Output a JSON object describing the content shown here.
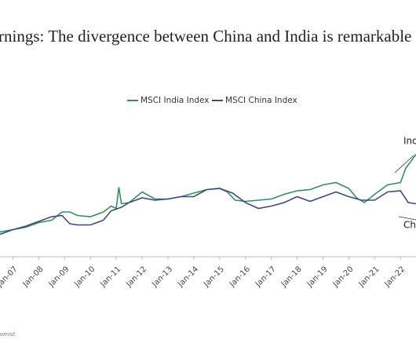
{
  "chart_data": {
    "type": "line",
    "title": "rnings: The divergence between China and India is remarkable",
    "source": "omist",
    "annotations": [
      "Indi",
      "Chi"
    ],
    "xlim": [
      2006.5,
      2022.6
    ],
    "xticks": [
      {
        "value": 2007,
        "label": "Jan-07"
      },
      {
        "value": 2008,
        "label": "Jan-08"
      },
      {
        "value": 2009,
        "label": "Jan-09"
      },
      {
        "value": 2010,
        "label": "Jan-10"
      },
      {
        "value": 2011,
        "label": "Jan-11"
      },
      {
        "value": 2012,
        "label": "Jan-12"
      },
      {
        "value": 2013,
        "label": "Jan-13"
      },
      {
        "value": 2014,
        "label": "Jan-14"
      },
      {
        "value": 2015,
        "label": "Jan-15"
      },
      {
        "value": 2016,
        "label": "Jan-16"
      },
      {
        "value": 2017,
        "label": "Jan-17"
      },
      {
        "value": 2018,
        "label": "Jan-18"
      },
      {
        "value": 2019,
        "label": "Jan-19"
      },
      {
        "value": 2020,
        "label": "Jan-20"
      },
      {
        "value": 2021,
        "label": "Jan-21"
      },
      {
        "value": 2022,
        "label": "Jan-22"
      }
    ],
    "ylim": [
      0,
      100
    ],
    "series": [
      {
        "name": "MSCI India Index",
        "color": "#3a8a63",
        "x": [
          2006.5,
          2007.0,
          2007.5,
          2008.0,
          2008.5,
          2008.9,
          2009.2,
          2009.5,
          2010.0,
          2010.5,
          2010.8,
          2011.0,
          2011.1,
          2011.2,
          2011.5,
          2012.0,
          2012.5,
          2013.0,
          2013.5,
          2014.0,
          2014.5,
          2015.0,
          2015.3,
          2015.6,
          2016.0,
          2016.5,
          2017.0,
          2017.5,
          2018.0,
          2018.5,
          2019.0,
          2019.5,
          2020.0,
          2020.3,
          2020.6,
          2021.0,
          2021.5,
          2022.0,
          2022.2,
          2022.6
        ],
        "values": [
          21,
          23,
          25,
          29,
          31,
          38,
          38,
          35,
          34,
          38,
          43,
          41,
          59,
          45,
          46,
          55,
          49,
          49,
          51,
          54,
          57,
          58,
          55,
          48,
          47,
          48,
          49,
          53,
          56,
          57,
          61,
          63,
          58,
          50,
          46,
          53,
          61,
          63,
          75,
          87
        ]
      },
      {
        "name": "MSCI China Index",
        "color": "#3e4a7c",
        "x": [
          2006.5,
          2007.0,
          2007.5,
          2008.0,
          2008.5,
          2008.9,
          2009.2,
          2009.5,
          2010.0,
          2010.5,
          2010.8,
          2011.2,
          2011.5,
          2012.0,
          2012.5,
          2013.0,
          2013.5,
          2014.0,
          2014.5,
          2015.0,
          2015.5,
          2016.0,
          2016.5,
          2017.0,
          2017.5,
          2018.0,
          2018.5,
          2019.0,
          2019.5,
          2020.0,
          2020.5,
          2021.0,
          2021.5,
          2022.0,
          2022.3,
          2022.6
        ],
        "values": [
          19,
          23,
          26,
          30,
          34,
          35,
          28,
          27,
          27,
          31,
          39,
          42,
          46,
          50,
          48,
          49,
          51,
          51,
          57,
          58,
          54,
          46,
          41,
          43,
          46,
          51,
          47,
          51,
          55,
          51,
          48,
          48,
          55,
          56,
          46,
          45
        ]
      }
    ]
  }
}
